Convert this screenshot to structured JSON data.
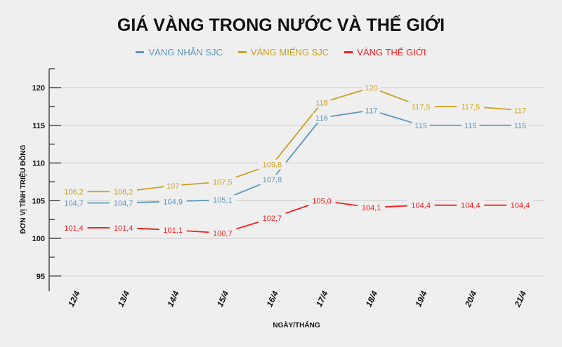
{
  "chart_data": {
    "type": "line",
    "title": "GIÁ VÀNG TRONG NƯỚC VÀ THẾ GIỚI",
    "xlabel": "NGÀY/THÁNG",
    "ylabel": "ĐƠN VỊ TÍNH TRIỆU ĐỒNG",
    "categories": [
      "12/4",
      "13/4",
      "14/4",
      "15/4",
      "16/4",
      "17/4",
      "18/4",
      "19/4",
      "20/4",
      "21/4"
    ],
    "ylim": [
      93,
      122.5
    ],
    "yticks": [
      95,
      100,
      105,
      110,
      115,
      120
    ],
    "grid": true,
    "legend_position": "top",
    "series": [
      {
        "name": "VÀNG NHẪN SJC",
        "color": "#5b97b8",
        "values": [
          104.7,
          104.7,
          104.9,
          105.1,
          107.8,
          116,
          117,
          115,
          115,
          115
        ],
        "labels": [
          "104,7",
          "104,7",
          "104,9",
          "105,1",
          "107,8",
          "116",
          "117",
          "115",
          "115",
          "115"
        ]
      },
      {
        "name": "VÀNG MIẾNG SJC",
        "color": "#c9a020",
        "values": [
          106.2,
          106.2,
          107,
          107.5,
          109.8,
          118,
          120,
          117.5,
          117.5,
          117
        ],
        "labels": [
          "106,2",
          "106,2",
          "107",
          "107,5",
          "109,8",
          "118",
          "120",
          "117,5",
          "117,5",
          "117"
        ]
      },
      {
        "name": "VÀNG THẾ GIỚI",
        "color": "#ff1a1a",
        "values": [
          101.4,
          101.4,
          101.1,
          100.7,
          102.7,
          105.0,
          104.1,
          104.4,
          104.4,
          104.4
        ],
        "labels": [
          "101,4",
          "101,4",
          "101,1",
          "100,7",
          "102,7",
          "105,0",
          "104,1",
          "104,4",
          "104,4",
          "104,4"
        ]
      }
    ]
  }
}
